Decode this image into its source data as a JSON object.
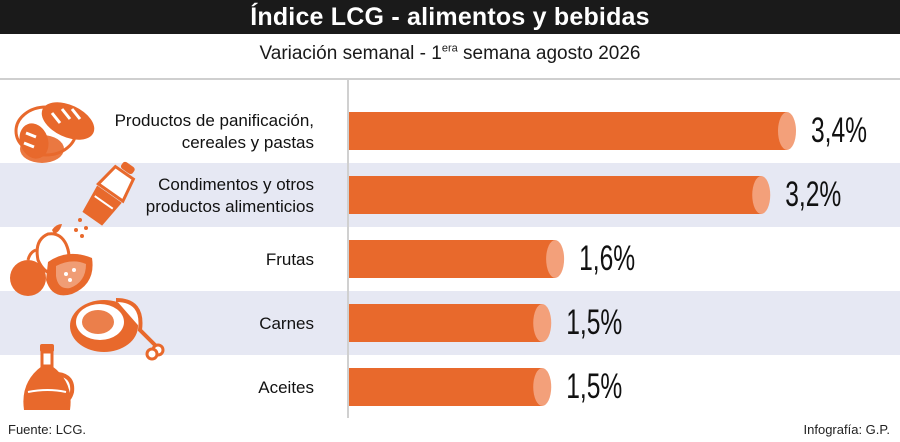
{
  "header": {
    "title": "Índice LCG - alimentos y bebidas",
    "subtitle_main": "Variación semanal - 1",
    "subtitle_sup": "era",
    "subtitle_tail": " semana agosto 2026"
  },
  "footer": {
    "source": "Fuente: LCG.",
    "credit": "Infografía: G.P."
  },
  "colors": {
    "bar": "#e8692c",
    "bar_cap": "#f3a07a",
    "band": "#e6e8f3",
    "icon": "#e8692c",
    "divider": "#d0d0d0"
  },
  "icons": [
    "bread-icon",
    "pepper-grinder-icon",
    "fruits-icon",
    "meat-icon",
    "oil-bottle-icon"
  ],
  "chart_data": {
    "type": "bar",
    "orientation": "horizontal",
    "title": "Índice LCG - alimentos y bebidas",
    "subtitle": "Variación semanal - 1era semana agosto 2026",
    "unit": "%",
    "categories": [
      [
        "Productos de panificación,",
        "cereales y pastas"
      ],
      [
        "Condimentos y otros",
        "productos alimenticios"
      ],
      [
        "Frutas"
      ],
      [
        "Carnes"
      ],
      [
        "Aceites"
      ]
    ],
    "values": [
      3.4,
      3.2,
      1.6,
      1.5,
      1.5
    ],
    "value_labels": [
      "3,4%",
      "3,2%",
      "1,6%",
      "1,5%",
      "1,5%"
    ],
    "xlim": [
      0,
      3.4
    ],
    "grid": false,
    "legend": "none"
  }
}
